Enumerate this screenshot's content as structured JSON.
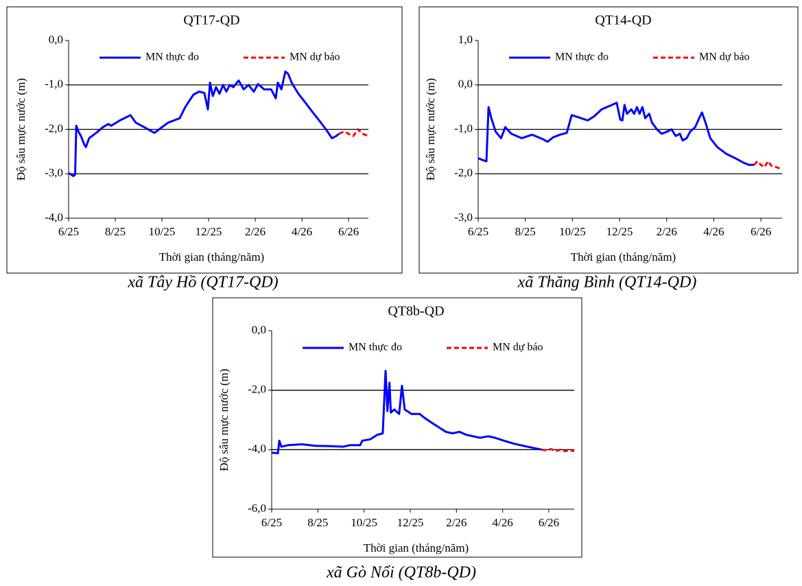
{
  "chart_data": [
    {
      "type": "line",
      "title": "QT17-QD",
      "xlabel": "Thời gian  (tháng/năm)",
      "ylabel": "Độ sâu mực nước (m)",
      "caption": "xã Tây Hồ (QT17-QD)",
      "xlim": [
        0,
        12.85
      ],
      "xticks": [
        {
          "value": 0,
          "label": "6/25"
        },
        {
          "value": 2,
          "label": "8/25"
        },
        {
          "value": 4,
          "label": "10/25"
        },
        {
          "value": 6,
          "label": "12/25"
        },
        {
          "value": 8,
          "label": "2/26"
        },
        {
          "value": 10,
          "label": "4/26"
        },
        {
          "value": 12,
          "label": "6/26"
        }
      ],
      "ylim": [
        -4,
        0
      ],
      "yticks": [
        {
          "value": -4,
          "label": "-4,0"
        },
        {
          "value": -3,
          "label": "-3,0"
        },
        {
          "value": -2,
          "label": "-2,0"
        },
        {
          "value": -1,
          "label": "-1,0"
        },
        {
          "value": 0,
          "label": "0,0"
        }
      ],
      "grid": true,
      "series": [
        {
          "name": "MN thực đo",
          "color": "#0000ff",
          "style": "solid",
          "x": [
            0,
            0.2,
            0.28,
            0.33,
            0.42,
            0.53,
            0.68,
            0.74,
            0.88,
            1.18,
            1.47,
            1.71,
            1.82,
            2.2,
            2.65,
            2.88,
            3.24,
            3.68,
            3.88,
            4.26,
            4.76,
            5.0,
            5.35,
            5.59,
            5.82,
            5.97,
            6.06,
            6.18,
            6.32,
            6.47,
            6.62,
            6.76,
            6.91,
            7.06,
            7.29,
            7.5,
            7.71,
            7.94,
            8.12,
            8.38,
            8.68,
            8.88,
            8.97,
            9.12,
            9.29,
            9.41,
            9.56,
            9.85,
            10.15,
            10.44,
            10.74,
            11.03,
            11.29,
            11.47,
            11.59
          ],
          "values": [
            -2.98,
            -3.05,
            -3.02,
            -1.92,
            -2.05,
            -2.15,
            -2.35,
            -2.4,
            -2.2,
            -2.08,
            -1.95,
            -1.88,
            -1.92,
            -1.8,
            -1.68,
            -1.85,
            -1.95,
            -2.08,
            -2.0,
            -1.85,
            -1.75,
            -1.5,
            -1.22,
            -1.15,
            -1.18,
            -1.55,
            -0.95,
            -1.25,
            -1.05,
            -1.2,
            -1.0,
            -1.15,
            -1.0,
            -1.05,
            -0.9,
            -1.1,
            -1.0,
            -1.15,
            -0.98,
            -1.1,
            -1.1,
            -1.3,
            -0.95,
            -1.1,
            -0.7,
            -0.75,
            -0.95,
            -1.2,
            -1.4,
            -1.6,
            -1.8,
            -2.0,
            -2.2,
            -2.15,
            -2.1
          ]
        },
        {
          "name": "MN dự báo",
          "color": "#ff0000",
          "style": "dashed",
          "x": [
            11.59,
            11.8,
            12.0,
            12.2,
            12.4,
            12.6,
            12.85
          ],
          "values": [
            -2.1,
            -2.05,
            -2.1,
            -2.15,
            -2.0,
            -2.1,
            -2.15
          ]
        }
      ]
    },
    {
      "type": "line",
      "title": "QT14-QD",
      "xlabel": "Thời gian  (tháng/năm)",
      "ylabel": "Độ sâu mực nước (m)",
      "caption": "xã Thăng Bình (QT14-QD)",
      "xlim": [
        0,
        12.9
      ],
      "xticks": [
        {
          "value": 0,
          "label": "6/25"
        },
        {
          "value": 2,
          "label": "8/25"
        },
        {
          "value": 4,
          "label": "10/25"
        },
        {
          "value": 6,
          "label": "12/25"
        },
        {
          "value": 8,
          "label": "2/26"
        },
        {
          "value": 10,
          "label": "4/26"
        },
        {
          "value": 12,
          "label": "6/26"
        }
      ],
      "ylim": [
        -3,
        1
      ],
      "yticks": [
        {
          "value": -3,
          "label": "-3,0"
        },
        {
          "value": -2,
          "label": "-2,0"
        },
        {
          "value": -1,
          "label": "-1,0"
        },
        {
          "value": 0,
          "label": "0,0"
        },
        {
          "value": 1,
          "label": "1,0"
        }
      ],
      "grid": true,
      "series": [
        {
          "name": "MN thực đo",
          "color": "#0000ff",
          "style": "solid",
          "x": [
            0,
            0.24,
            0.35,
            0.44,
            0.56,
            0.74,
            0.97,
            1.15,
            1.41,
            1.85,
            2.29,
            2.74,
            2.94,
            3.18,
            3.47,
            3.76,
            3.97,
            4.21,
            4.65,
            4.94,
            5.24,
            5.68,
            5.88,
            6.03,
            6.12,
            6.21,
            6.32,
            6.5,
            6.62,
            6.74,
            6.85,
            6.97,
            7.09,
            7.26,
            7.38,
            7.59,
            7.79,
            8.03,
            8.21,
            8.38,
            8.56,
            8.68,
            8.85,
            9.0,
            9.21,
            9.38,
            9.5,
            9.65,
            9.85,
            10.15,
            10.53,
            10.91,
            11.26,
            11.5,
            11.71
          ],
          "values": [
            -1.65,
            -1.7,
            -1.72,
            -0.5,
            -0.75,
            -1.05,
            -1.2,
            -0.95,
            -1.1,
            -1.2,
            -1.12,
            -1.22,
            -1.28,
            -1.18,
            -1.12,
            -1.08,
            -0.68,
            -0.72,
            -0.8,
            -0.7,
            -0.55,
            -0.45,
            -0.4,
            -0.78,
            -0.8,
            -0.45,
            -0.65,
            -0.55,
            -0.65,
            -0.5,
            -0.65,
            -0.5,
            -0.75,
            -0.65,
            -0.85,
            -1.0,
            -1.1,
            -1.05,
            -1.0,
            -1.15,
            -1.1,
            -1.25,
            -1.2,
            -1.05,
            -0.95,
            -0.75,
            -0.62,
            -0.85,
            -1.2,
            -1.4,
            -1.55,
            -1.65,
            -1.75,
            -1.8,
            -1.8
          ]
        },
        {
          "name": "MN dự báo",
          "color": "#ff0000",
          "style": "dashed",
          "x": [
            11.71,
            11.85,
            12.0,
            12.15,
            12.3,
            12.45,
            12.65,
            12.9
          ],
          "values": [
            -1.8,
            -1.72,
            -1.8,
            -1.85,
            -1.72,
            -1.82,
            -1.85,
            -1.9
          ]
        }
      ]
    },
    {
      "type": "line",
      "title": "QT8b-QD",
      "xlabel": "Thời gian  (tháng/năm)",
      "ylabel": "Độ sâu mực nước (m)",
      "caption": "xã Gò Nổi (QT8b-QD)",
      "xlim": [
        0,
        13.1
      ],
      "xticks": [
        {
          "value": 0,
          "label": "6/25"
        },
        {
          "value": 2,
          "label": "8/25"
        },
        {
          "value": 4,
          "label": "10/25"
        },
        {
          "value": 6,
          "label": "12/25"
        },
        {
          "value": 8,
          "label": "2/26"
        },
        {
          "value": 10,
          "label": "4/26"
        },
        {
          "value": 12,
          "label": "6/26"
        }
      ],
      "ylim": [
        -6,
        0
      ],
      "yticks": [
        {
          "value": -6,
          "label": "-6,0"
        },
        {
          "value": -4,
          "label": "-4,0"
        },
        {
          "value": -2,
          "label": "-2,0"
        },
        {
          "value": 0,
          "label": "0,0"
        }
      ],
      "grid": true,
      "series": [
        {
          "name": "MN thực đo",
          "color": "#0000ff",
          "style": "solid",
          "x": [
            0,
            0.27,
            0.33,
            0.42,
            0.71,
            1.31,
            1.9,
            2.49,
            3.09,
            3.38,
            3.83,
            3.92,
            4.27,
            4.57,
            4.81,
            4.93,
            5.01,
            5.1,
            5.16,
            5.31,
            5.52,
            5.64,
            5.76,
            6.05,
            6.41,
            6.65,
            6.94,
            7.24,
            7.54,
            7.83,
            8.13,
            8.43,
            8.72,
            9.02,
            9.38,
            9.67,
            10.06,
            10.5,
            10.95,
            11.39,
            11.69
          ],
          "values": [
            -4.1,
            -4.12,
            -3.7,
            -3.9,
            -3.85,
            -3.82,
            -3.87,
            -3.88,
            -3.9,
            -3.85,
            -3.85,
            -3.7,
            -3.65,
            -3.5,
            -3.45,
            -1.35,
            -2.7,
            -1.75,
            -2.75,
            -2.65,
            -2.8,
            -1.85,
            -2.65,
            -2.8,
            -2.8,
            -2.95,
            -3.1,
            -3.25,
            -3.4,
            -3.45,
            -3.4,
            -3.5,
            -3.55,
            -3.6,
            -3.55,
            -3.6,
            -3.7,
            -3.8,
            -3.88,
            -3.95,
            -4.0
          ]
        },
        {
          "name": "MN dự báo",
          "color": "#ff0000",
          "style": "dashed",
          "x": [
            11.69,
            11.9,
            12.1,
            12.3,
            12.5,
            12.7,
            12.9,
            13.1
          ],
          "values": [
            -4.0,
            -4.02,
            -3.98,
            -4.05,
            -4.0,
            -4.05,
            -4.02,
            -4.05
          ]
        }
      ]
    }
  ]
}
